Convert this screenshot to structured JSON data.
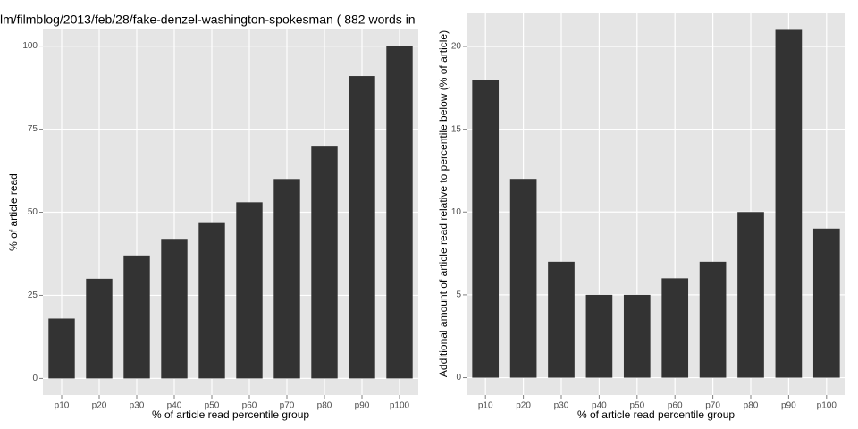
{
  "chart_data": [
    {
      "type": "bar",
      "title": "lm/filmblog/2013/feb/28/fake-denzel-washington-spokesman ( 882 words in",
      "x_label": "% of article read percentile group",
      "y_label": "% of article read",
      "categories": [
        "p10",
        "p20",
        "p30",
        "p40",
        "p50",
        "p60",
        "p70",
        "p80",
        "p90",
        "p100"
      ],
      "values": [
        18,
        30,
        37,
        42,
        47,
        53,
        60,
        70,
        91,
        100
      ],
      "color": "#333333",
      "ylim": [
        -5,
        105
      ],
      "yticks": [
        0,
        25,
        50,
        75,
        100
      ],
      "grid": true
    },
    {
      "type": "bar",
      "x_label": "% of article read percentile group",
      "y_label": "Additional amount of article read relative to percentile below (% of article)",
      "categories": [
        "p10",
        "p20",
        "p30",
        "p40",
        "p50",
        "p60",
        "p70",
        "p80",
        "p90",
        "p100"
      ],
      "values": [
        18,
        12,
        7,
        5,
        5,
        6,
        7,
        10,
        21,
        9
      ],
      "color": "#333333",
      "ylim": [
        -1.05,
        22.05
      ],
      "yticks": [
        0,
        5,
        10,
        15,
        20
      ],
      "grid": true
    }
  ]
}
